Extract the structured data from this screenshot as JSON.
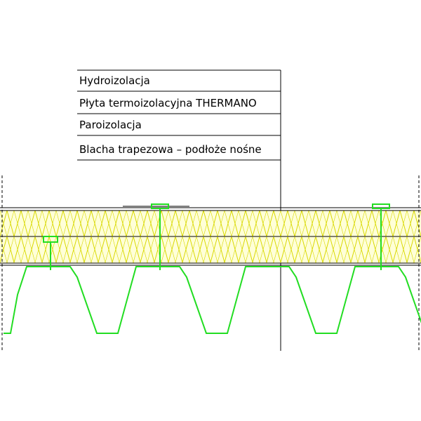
{
  "labels": [
    "Hydroizolacja",
    "Płyta termoizolacyjna THERMANO",
    "Paroizolacja",
    "Blacha trapezowa – podłoże nośne"
  ]
}
